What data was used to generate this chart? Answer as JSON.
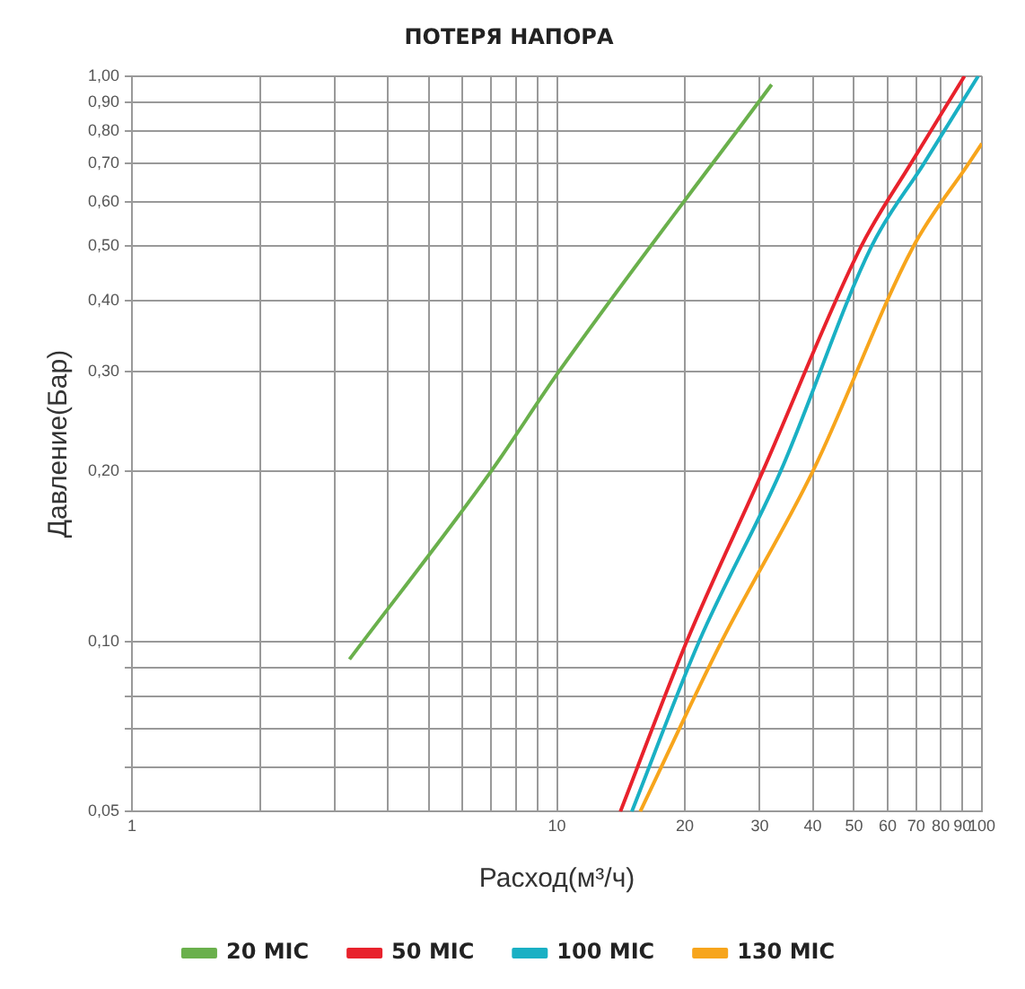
{
  "chart_data": {
    "type": "line",
    "title": "ПОТЕРЯ НАПОРА",
    "xlabel": "Расход(м³/ч)",
    "ylabel": "Давление(Бар)",
    "log": "xy",
    "grid": true,
    "legend": "bottom",
    "marker": "none",
    "line_style": "solid",
    "xlim": [
      1,
      100
    ],
    "ylim": [
      0.05,
      1
    ],
    "xticks": [
      1,
      {
        "value": 2,
        "label": null
      },
      {
        "value": 3,
        "label": null
      },
      {
        "value": 4,
        "label": null
      },
      {
        "value": 5,
        "label": null
      },
      {
        "value": 6,
        "label": null
      },
      {
        "value": 7,
        "label": null
      },
      {
        "value": 8,
        "label": null
      },
      {
        "value": 9,
        "label": null
      },
      10,
      20,
      30,
      40,
      50,
      60,
      70,
      80,
      90,
      100
    ],
    "yticks": [
      {
        "value": 0.05,
        "label": "0,05"
      },
      {
        "value": 0.06,
        "label": null
      },
      {
        "value": 0.07,
        "label": null
      },
      {
        "value": 0.08,
        "label": null
      },
      {
        "value": 0.09,
        "label": null
      },
      {
        "value": 0.1,
        "label": "0,10"
      },
      {
        "value": 0.2,
        "label": "0,20"
      },
      {
        "value": 0.3,
        "label": "0,30"
      },
      {
        "value": 0.4,
        "label": "0,40"
      },
      {
        "value": 0.5,
        "label": "0,50"
      },
      {
        "value": 0.6,
        "label": "0,60"
      },
      {
        "value": 0.7,
        "label": "0,70"
      },
      {
        "value": 0.8,
        "label": "0,80"
      },
      {
        "value": 0.9,
        "label": "0,90"
      },
      {
        "value": 1,
        "label": "1,00"
      }
    ],
    "series": [
      {
        "name": "20 MIC",
        "color": "#6ab04c",
        "x": [
          3.25,
          7,
          10.1,
          32
        ],
        "values": [
          0.093,
          0.2,
          0.3,
          0.966
        ]
      },
      {
        "name": "50 MIC",
        "color": "#e8222c",
        "x": [
          14.1,
          20.2,
          30.5,
          52,
          68,
          91
        ],
        "values": [
          0.05,
          0.1,
          0.2,
          0.5,
          0.7,
          1
        ]
      },
      {
        "name": "100 MIC",
        "color": "#1ab0c4",
        "x": [
          15,
          21.6,
          33.6,
          55,
          73,
          98
        ],
        "values": [
          0.05,
          0.1,
          0.2,
          0.5,
          0.7,
          1
        ]
      },
      {
        "name": "130 MIC",
        "color": "#f7a51c",
        "x": [
          15.7,
          24.4,
          40,
          69,
          93,
          100
        ],
        "values": [
          0.05,
          0.1,
          0.2,
          0.5,
          0.7,
          0.76
        ]
      }
    ]
  }
}
